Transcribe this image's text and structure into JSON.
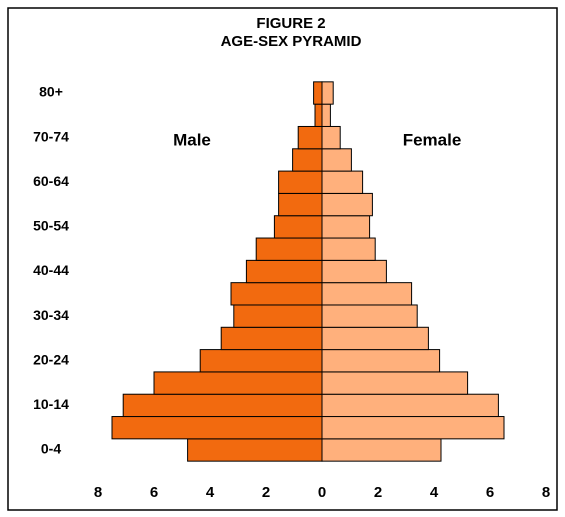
{
  "chart_data": {
    "type": "pyramid",
    "title": [
      "FIGURE  2",
      "AGE-SEX PYRAMID"
    ],
    "categories": [
      "0-4",
      null,
      "10-14",
      null,
      "20-24",
      null,
      "30-34",
      null,
      "40-44",
      null,
      "50-54",
      null,
      "60-64",
      null,
      "70-74",
      null,
      "80+"
    ],
    "series": [
      {
        "name": "Male",
        "color": "#f26a0f",
        "values": [
          -4.8,
          -7.5,
          -7.1,
          -6.0,
          -4.35,
          -3.6,
          -3.15,
          -3.25,
          -2.7,
          -2.35,
          -1.7,
          -1.55,
          -1.55,
          -1.05,
          -0.85,
          -0.25,
          -0.3
        ]
      },
      {
        "name": "Female",
        "color": "#ffb07c",
        "values": [
          4.25,
          6.5,
          6.3,
          5.2,
          4.2,
          3.8,
          3.4,
          3.2,
          2.3,
          1.9,
          1.7,
          1.8,
          1.45,
          1.05,
          0.65,
          0.3,
          0.4
        ]
      }
    ],
    "xlim": [
      -8,
      8
    ],
    "xticks": [
      {
        "value": -8,
        "label": "8"
      },
      {
        "value": -6,
        "label": "6"
      },
      {
        "value": -4,
        "label": "4"
      },
      {
        "value": -2,
        "label": "2"
      },
      0,
      2,
      4,
      6,
      8
    ]
  }
}
